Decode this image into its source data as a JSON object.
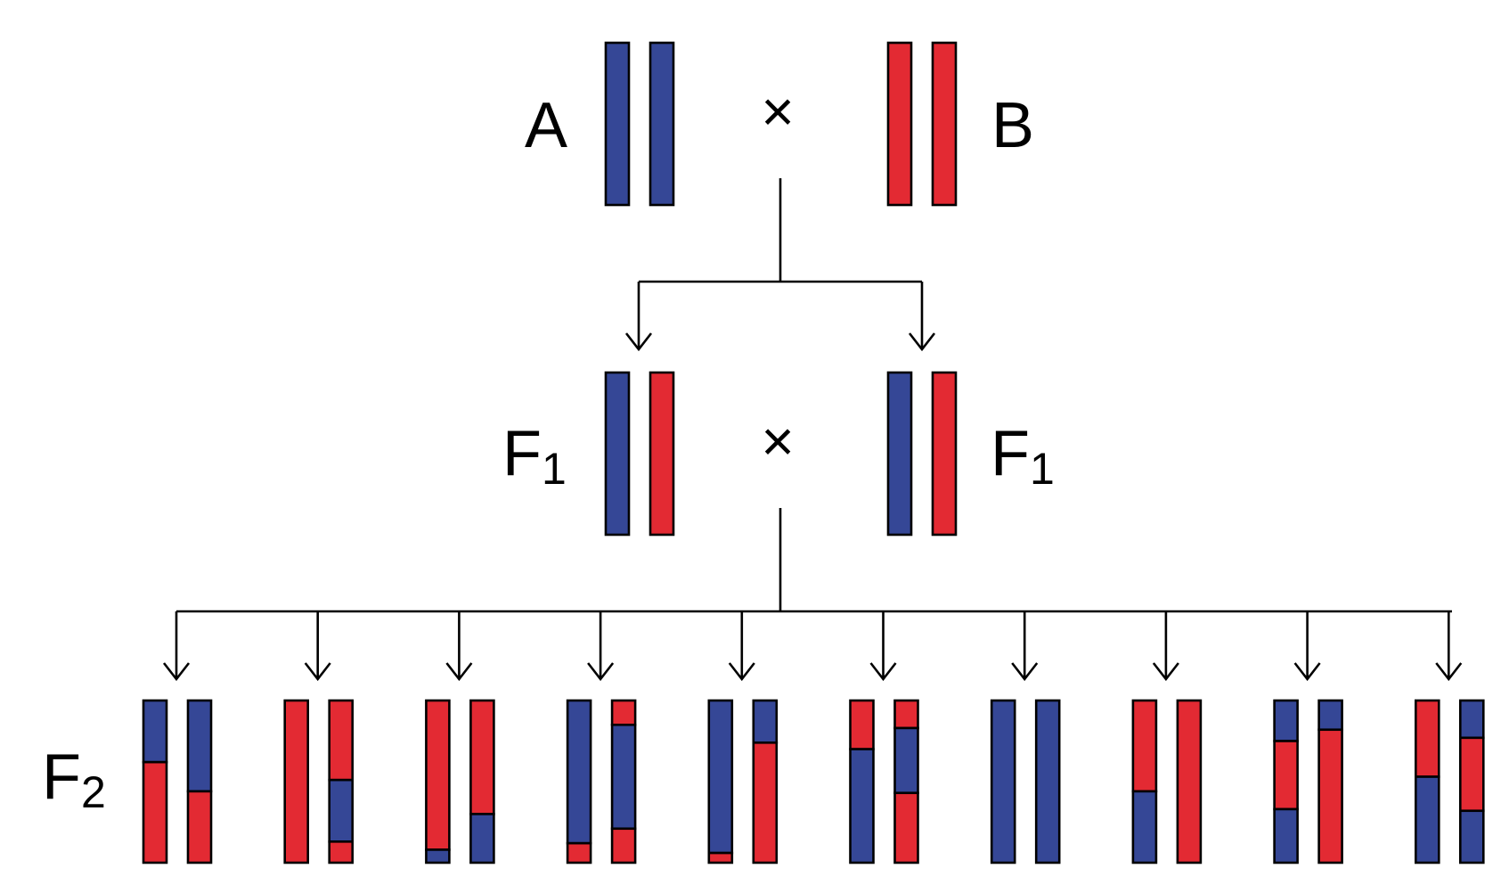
{
  "colors": {
    "a": "#354796",
    "b": "#e32a33",
    "outline": "#000000"
  },
  "labels": {
    "parent_a": "A",
    "parent_b": "B",
    "f1_left": "F",
    "f1_left_sub": "1",
    "f1_right": "F",
    "f1_right_sub": "1",
    "f2": "F",
    "f2_sub": "2",
    "cross_symbol": "×"
  },
  "parents": {
    "a": [
      [
        {
          "c": "a",
          "len": 1
        }
      ],
      [
        {
          "c": "a",
          "len": 1
        }
      ]
    ],
    "b": [
      [
        {
          "c": "b",
          "len": 1
        }
      ],
      [
        {
          "c": "b",
          "len": 1
        }
      ]
    ]
  },
  "f1": {
    "left": [
      [
        {
          "c": "a",
          "len": 1
        }
      ],
      [
        {
          "c": "b",
          "len": 1
        }
      ]
    ],
    "right": [
      [
        {
          "c": "a",
          "len": 1
        }
      ],
      [
        {
          "c": "b",
          "len": 1
        }
      ]
    ]
  },
  "f2_individuals": [
    [
      [
        {
          "c": "a",
          "len": 0.38
        },
        {
          "c": "b",
          "len": 0.62
        }
      ],
      [
        {
          "c": "a",
          "len": 0.56
        },
        {
          "c": "b",
          "len": 0.44
        }
      ]
    ],
    [
      [
        {
          "c": "b",
          "len": 1
        }
      ],
      [
        {
          "c": "b",
          "len": 0.49
        },
        {
          "c": "a",
          "len": 0.38
        },
        {
          "c": "b",
          "len": 0.13
        }
      ]
    ],
    [
      [
        {
          "c": "b",
          "len": 0.92
        },
        {
          "c": "a",
          "len": 0.08
        }
      ],
      [
        {
          "c": "b",
          "len": 0.7
        },
        {
          "c": "a",
          "len": 0.3
        }
      ]
    ],
    [
      [
        {
          "c": "a",
          "len": 0.88
        },
        {
          "c": "b",
          "len": 0.12
        }
      ],
      [
        {
          "c": "b",
          "len": 0.15
        },
        {
          "c": "a",
          "len": 0.64
        },
        {
          "c": "b",
          "len": 0.21
        }
      ]
    ],
    [
      [
        {
          "c": "a",
          "len": 0.94
        },
        {
          "c": "b",
          "len": 0.06
        }
      ],
      [
        {
          "c": "a",
          "len": 0.26
        },
        {
          "c": "b",
          "len": 0.74
        }
      ]
    ],
    [
      [
        {
          "c": "b",
          "len": 0.3
        },
        {
          "c": "a",
          "len": 0.7
        }
      ],
      [
        {
          "c": "b",
          "len": 0.17
        },
        {
          "c": "a",
          "len": 0.4
        },
        {
          "c": "b",
          "len": 0.43
        }
      ]
    ],
    [
      [
        {
          "c": "a",
          "len": 1
        }
      ],
      [
        {
          "c": "a",
          "len": 1
        }
      ]
    ],
    [
      [
        {
          "c": "b",
          "len": 0.56
        },
        {
          "c": "a",
          "len": 0.44
        }
      ],
      [
        {
          "c": "b",
          "len": 1
        }
      ]
    ],
    [
      [
        {
          "c": "a",
          "len": 0.25
        },
        {
          "c": "b",
          "len": 0.42
        },
        {
          "c": "a",
          "len": 0.33
        }
      ],
      [
        {
          "c": "a",
          "len": 0.18
        },
        {
          "c": "b",
          "len": 0.82
        }
      ]
    ],
    [
      [
        {
          "c": "b",
          "len": 0.47
        },
        {
          "c": "a",
          "len": 0.53
        }
      ],
      [
        {
          "c": "a",
          "len": 0.23
        },
        {
          "c": "b",
          "len": 0.45
        },
        {
          "c": "a",
          "len": 0.32
        }
      ]
    ]
  ]
}
